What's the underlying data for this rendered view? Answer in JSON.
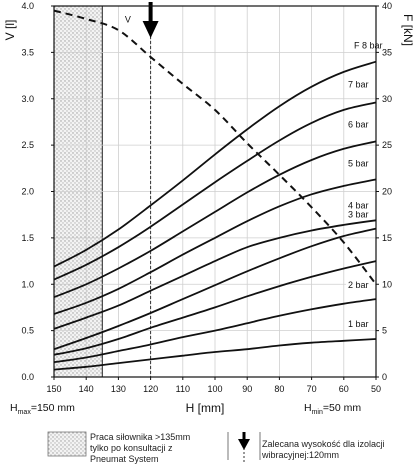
{
  "chart_data": {
    "type": "line",
    "title": "",
    "x_axis": {
      "label": "H [mm]",
      "range": [
        150,
        50
      ],
      "reversed": true,
      "ticks": [
        150,
        140,
        130,
        120,
        110,
        100,
        90,
        80,
        70,
        60,
        50
      ]
    },
    "y_left": {
      "label": "V [l]",
      "range": [
        0,
        4.0
      ],
      "ticks": [
        "0.0",
        "0.5",
        "1.0",
        "1.5",
        "2.0",
        "2.5",
        "3.0",
        "3.5",
        "4.0"
      ]
    },
    "y_right": {
      "label": "F [kN]",
      "range": [
        0,
        40
      ],
      "ticks": [
        0,
        5,
        10,
        15,
        20,
        25,
        30,
        35,
        40
      ]
    },
    "grid": true,
    "x": [
      150,
      140,
      130,
      120,
      110,
      100,
      90,
      80,
      70,
      60,
      50
    ],
    "series": [
      {
        "name": "1 bar",
        "axis": "F",
        "values": [
          0.8,
          1.1,
          1.5,
          1.9,
          2.3,
          2.7,
          3.0,
          3.4,
          3.7,
          3.9,
          4.1
        ]
      },
      {
        "name": "2 bar",
        "axis": "F",
        "values": [
          1.6,
          2.1,
          2.8,
          3.5,
          4.3,
          5.0,
          5.8,
          6.6,
          7.3,
          7.9,
          8.4
        ]
      },
      {
        "name": "",
        "axis": "F",
        "values": [
          2.4,
          3.1,
          4.1,
          5.3,
          6.4,
          7.5,
          8.7,
          9.8,
          10.8,
          11.7,
          12.5
        ]
      },
      {
        "name": "3 bar",
        "axis": "F",
        "values": [
          3.0,
          4.2,
          5.5,
          6.9,
          8.4,
          9.9,
          11.4,
          12.8,
          14.1,
          15.2,
          16.0
        ]
      },
      {
        "name": "4 bar",
        "axis": "F",
        "values": [
          5.2,
          6.4,
          7.7,
          9.3,
          10.9,
          12.5,
          14.0,
          15.0,
          15.8,
          16.4,
          16.9
        ]
      },
      {
        "name": "5 bar",
        "axis": "F",
        "values": [
          6.8,
          8.0,
          9.5,
          11.3,
          13.2,
          15.0,
          16.8,
          18.4,
          19.7,
          20.6,
          21.3
        ]
      },
      {
        "name": "6 bar",
        "axis": "F",
        "values": [
          8.6,
          10.0,
          11.7,
          13.6,
          15.7,
          17.8,
          19.9,
          21.8,
          23.4,
          24.6,
          25.4
        ]
      },
      {
        "name": "7 bar",
        "axis": "F",
        "values": [
          10.5,
          12.1,
          14.0,
          16.2,
          18.6,
          21.0,
          23.3,
          25.5,
          27.4,
          28.8,
          29.6
        ]
      },
      {
        "name": "F 8 bar",
        "axis": "F",
        "values": [
          11.9,
          13.7,
          15.9,
          18.5,
          21.2,
          24.0,
          26.7,
          29.2,
          31.3,
          32.9,
          34.0
        ]
      },
      {
        "name": "V",
        "axis": "V",
        "style": "dashed",
        "values": [
          3.95,
          3.86,
          3.74,
          3.45,
          3.16,
          2.88,
          2.52,
          2.18,
          1.83,
          1.45,
          1.0
        ]
      }
    ],
    "hatched_region": {
      "from": 150,
      "to": 135
    },
    "recommended_marker": {
      "x": 120
    },
    "annotations": {
      "h_max": "H",
      "h_max_sub": "max",
      "h_max_value": "=150 mm",
      "h_min": "H",
      "h_min_sub": "min",
      "h_min_value": "=50 mm",
      "v_curve_label": "V"
    },
    "legend": {
      "hatched_text": [
        "Praca siłownika >135mm",
        "tylko po konsultacji z",
        "Pneumat System"
      ],
      "marker_text": [
        "Zalecana wysokość dla izolacji",
        "wibracyjnej:120mm"
      ]
    }
  }
}
